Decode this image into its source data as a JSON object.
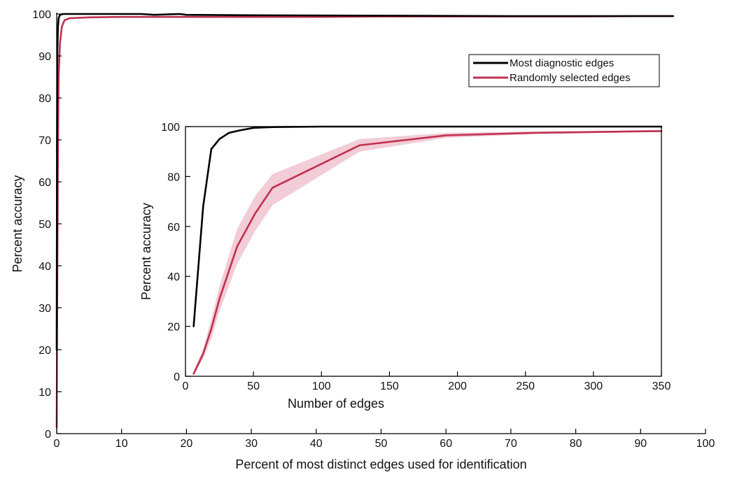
{
  "colors": {
    "most": "#000000",
    "random": "#c0304f",
    "random_band": "#f2ccd6"
  },
  "chart_data": [
    {
      "type": "line",
      "xlabel": "Percent of most distinct edges used for identification",
      "ylabel": "Percent accuracy",
      "xlim": [
        0,
        100
      ],
      "ylim": [
        0,
        100
      ],
      "xticks": [
        0,
        10,
        20,
        30,
        40,
        50,
        60,
        70,
        80,
        90,
        100
      ],
      "yticks": [
        0,
        10,
        20,
        30,
        40,
        50,
        60,
        70,
        80,
        90,
        100
      ],
      "legend": {
        "position": "top-right",
        "entries": [
          "Most diagnostic edges",
          "Randomly selected edges"
        ]
      },
      "series": [
        {
          "name": "Most diagnostic edges",
          "color": "#000000",
          "x": [
            0.0,
            0.05,
            0.1,
            0.2,
            0.3,
            0.5,
            1,
            5,
            10,
            13,
            15,
            19,
            20,
            30,
            50,
            70,
            80,
            90,
            95
          ],
          "y": [
            20,
            68,
            91,
            97,
            99,
            99.8,
            100,
            100,
            100,
            100,
            99.8,
            100,
            99.8,
            99.7,
            99.6,
            99.5,
            99.5,
            99.5,
            99.5
          ]
        },
        {
          "name": "Randomly selected edges",
          "color": "#c0304f",
          "x": [
            0.0,
            0.1,
            0.2,
            0.3,
            0.5,
            0.8,
            1.2,
            2,
            5,
            10,
            20,
            30,
            40,
            50,
            60,
            70,
            80,
            90,
            95
          ],
          "y": [
            1.5,
            40,
            70,
            85,
            93,
            97,
            98.5,
            99,
            99.2,
            99.3,
            99.3,
            99.3,
            99.3,
            99.4,
            99.4,
            99.4,
            99.4,
            99.5,
            99.5
          ]
        }
      ]
    },
    {
      "type": "line",
      "xlabel": "Number of edges",
      "ylabel": "Percent accuracy",
      "xlim": [
        0,
        350
      ],
      "ylim": [
        0,
        100
      ],
      "xticks": [
        0,
        50,
        100,
        150,
        200,
        250,
        300,
        350
      ],
      "yticks": [
        0,
        20,
        40,
        60,
        80,
        100
      ],
      "series": [
        {
          "name": "Most diagnostic edges",
          "color": "#000000",
          "x": [
            6,
            13,
            19,
            25,
            32,
            40,
            50,
            64,
            100,
            150,
            200,
            250,
            300,
            350
          ],
          "y": [
            20,
            68,
            91,
            95,
            97.5,
            98.5,
            99.5,
            99.8,
            100,
            100,
            100,
            100,
            100,
            100
          ]
        },
        {
          "name": "Randomly selected edges",
          "color": "#c0304f",
          "x": [
            6,
            13,
            19,
            25,
            38,
            51,
            64,
            128,
            192,
            256,
            320,
            350
          ],
          "y": [
            1,
            9,
            19,
            31,
            52,
            65,
            75.5,
            92.5,
            96.5,
            97.5,
            98,
            98.2
          ],
          "band_lower": [
            0.5,
            7,
            15,
            26,
            45,
            58,
            68.5,
            90,
            95.5,
            97,
            97.6,
            97.8
          ],
          "band_upper": [
            2,
            11,
            23,
            36,
            59,
            72,
            81,
            95,
            97.5,
            98,
            98.4,
            98.6
          ]
        }
      ]
    }
  ]
}
